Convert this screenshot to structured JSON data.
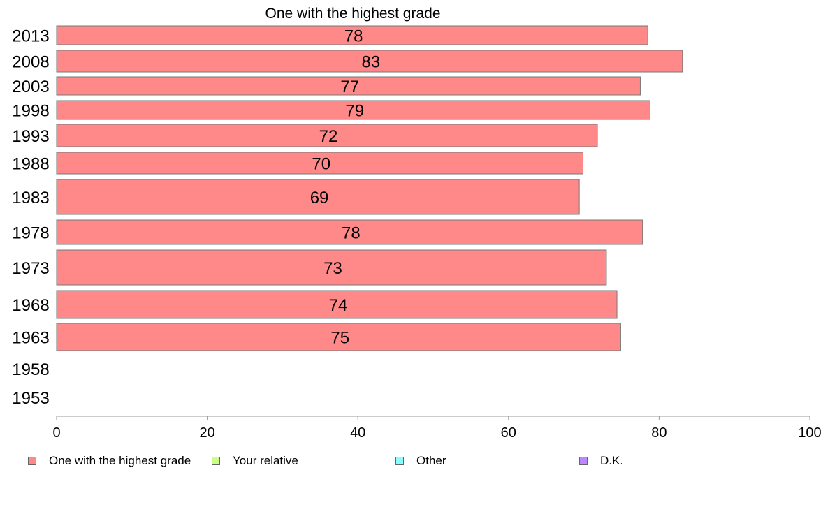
{
  "chart_data": {
    "type": "bar",
    "orientation": "horizontal",
    "title": "One with the highest grade",
    "categories": [
      "2013",
      "2008",
      "2003",
      "1998",
      "1993",
      "1988",
      "1983",
      "1978",
      "1973",
      "1968",
      "1963",
      "1958",
      "1953"
    ],
    "series": [
      {
        "name": "One with the highest grade",
        "color": "#ff8888",
        "values": [
          78.5,
          83.1,
          77.5,
          78.8,
          71.8,
          69.9,
          69.4,
          77.8,
          73.0,
          74.4,
          74.9,
          null,
          null
        ],
        "labels": [
          "78",
          "83",
          "77",
          "79",
          "72",
          "70",
          "69",
          "78",
          "73",
          "74",
          "75",
          "",
          ""
        ]
      }
    ],
    "xlim": [
      0,
      100
    ],
    "xticks": [
      "0",
      "20",
      "40",
      "60",
      "80",
      "100"
    ],
    "grid": false,
    "legend": {
      "position": "bottom",
      "items": [
        {
          "label": "One with the highest grade",
          "color": "#ff8888"
        },
        {
          "label": "Your relative",
          "color": "#ccff88"
        },
        {
          "label": "Other",
          "color": "#88ffff"
        },
        {
          "label": "D.K.",
          "color": "#bb88ff"
        }
      ]
    }
  }
}
